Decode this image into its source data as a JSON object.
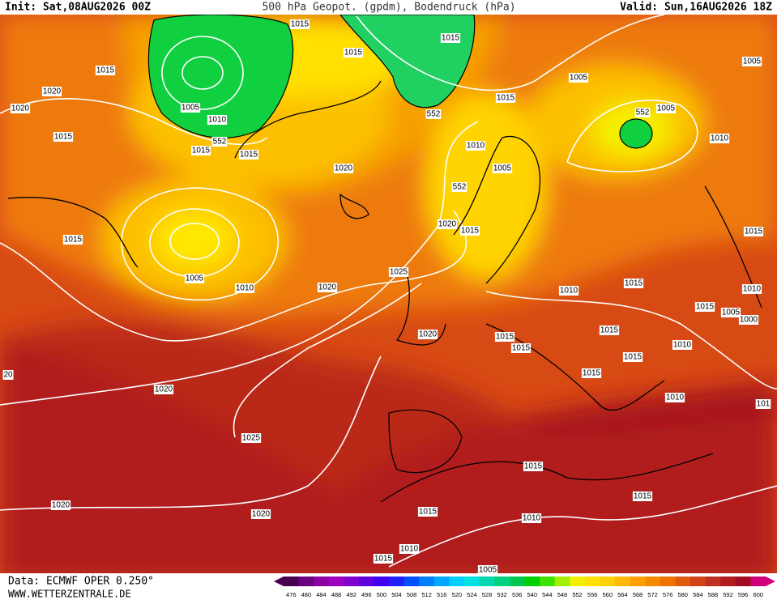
{
  "header": {
    "init": "Init: Sat,08AUG2026 00Z",
    "title": "500 hPa Geopot. (gpdm), Bodendruck (hPa)",
    "valid": "Valid: Sun,16AUG2026 18Z"
  },
  "isobar_labels": [
    "1015",
    "1015",
    "1015",
    "1005",
    "1015",
    "1005",
    "1020",
    "1015",
    "1005",
    "1005",
    "1020",
    "1010",
    "552",
    "552",
    "1015",
    "1010",
    "552",
    "1015",
    "1015",
    "1010",
    "1020",
    "1005",
    "552",
    "1020",
    "1015",
    "1015",
    "1015",
    "1005",
    "1010",
    "1020",
    "1025",
    "1010",
    "1015",
    "1010",
    "1015",
    "1005",
    "1000",
    "1015",
    "1020",
    "1015",
    "1015",
    "1010",
    "1015",
    "1015",
    "20",
    "1020",
    "1010",
    "101",
    "1025",
    "1015",
    "1015",
    "1020",
    "1015",
    "1020",
    "1010",
    "1010",
    "1015",
    "1005"
  ],
  "color_scale": {
    "values": [
      476,
      480,
      484,
      488,
      492,
      496,
      500,
      504,
      508,
      512,
      516,
      520,
      524,
      528,
      532,
      536,
      540,
      544,
      548,
      552,
      556,
      560,
      564,
      568,
      572,
      576,
      580,
      584,
      588,
      592,
      596,
      600
    ],
    "colors": [
      "#4a0050",
      "#6a0080",
      "#8a00a0",
      "#a000c0",
      "#8000d0",
      "#6000e0",
      "#4000f0",
      "#2020ff",
      "#0050ff",
      "#0080ff",
      "#00a8ff",
      "#00d0ff",
      "#00e0e0",
      "#00d8b0",
      "#00d080",
      "#00c850",
      "#00d000",
      "#40e000",
      "#a0f000",
      "#f0f000",
      "#ffe000",
      "#ffd000",
      "#ffb800",
      "#ffa000",
      "#f58a00",
      "#ee7300",
      "#e05a10",
      "#d04418",
      "#c03020",
      "#b01c20",
      "#a00c20",
      "#d0007a"
    ]
  },
  "footer": {
    "source": "Data: ECMWF OPER 0.250°",
    "website": "WWW.WETTERZENTRALE.DE"
  }
}
